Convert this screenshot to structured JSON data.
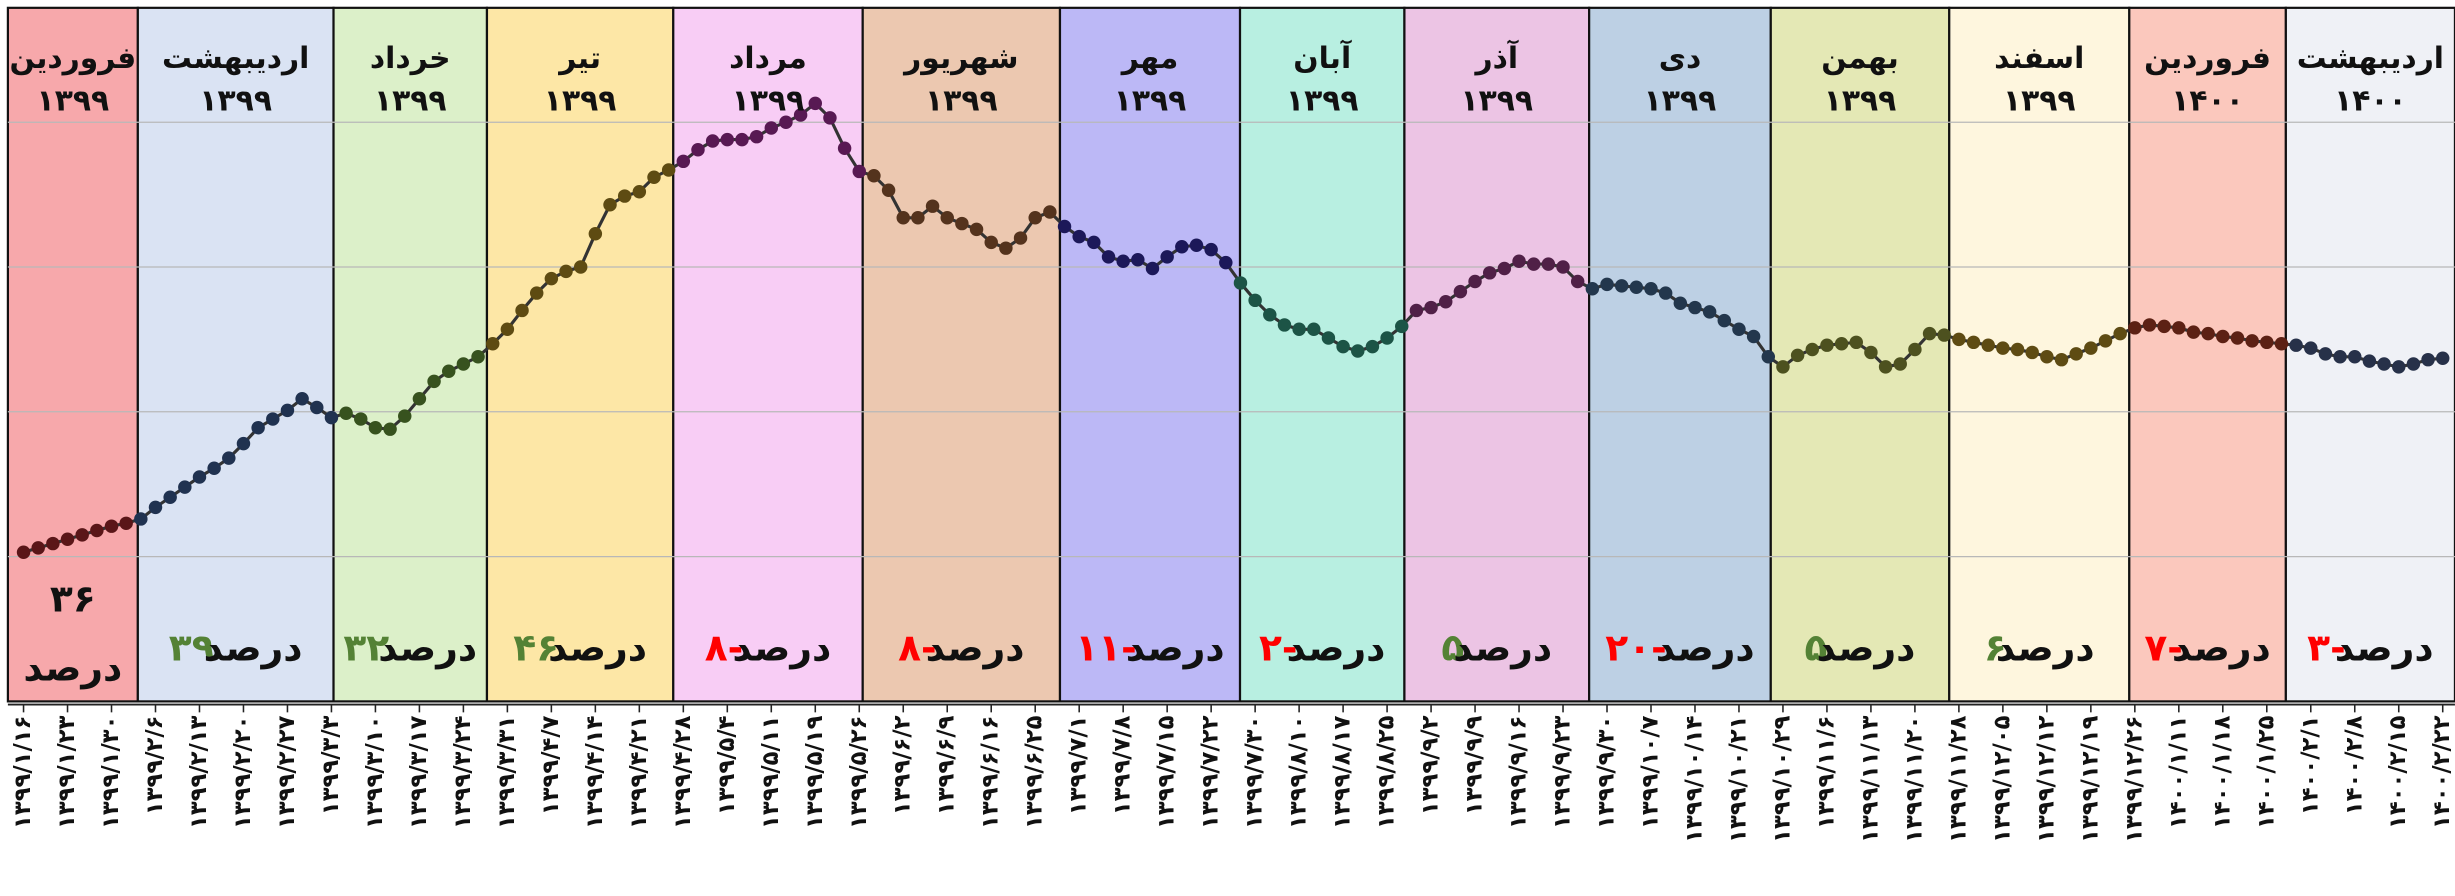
{
  "chart_data": {
    "type": "line",
    "change_unit": "درصد",
    "positive_color": "#548235",
    "negative_color": "#ff0000",
    "bands": [
      {
        "month": "فروردین",
        "year": "۱۳۹۹",
        "color": "#f7a8ab",
        "change": 36,
        "change_label": "۳۶"
      },
      {
        "month": "اردیبهشت",
        "year": "۱۳۹۹",
        "color": "#dae3f3",
        "change": 39,
        "change_label": "۳۹"
      },
      {
        "month": "خرداد",
        "year": "۱۳۹۹",
        "color": "#dcf0c9",
        "change": 32,
        "change_label": "۳۲"
      },
      {
        "month": "تیر",
        "year": "۱۳۹۹",
        "color": "#fde7a6",
        "change": 46,
        "change_label": "۴۶"
      },
      {
        "month": "مرداد",
        "year": "۱۳۹۹",
        "color": "#f8cdf5",
        "change": -8,
        "change_label": "-۸"
      },
      {
        "month": "شهریور",
        "year": "۱۳۹۹",
        "color": "#ecc8b0",
        "change": -8,
        "change_label": "-۸"
      },
      {
        "month": "مهر",
        "year": "۱۳۹۹",
        "color": "#bcb8f6",
        "change": -11,
        "change_label": "-۱۱"
      },
      {
        "month": "آبان",
        "year": "۱۳۹۹",
        "color": "#b8efe1",
        "change": -2,
        "change_label": "-۲"
      },
      {
        "month": "آذر",
        "year": "۱۳۹۹",
        "color": "#ecc4e4",
        "change": 5,
        "change_label": "۵"
      },
      {
        "month": "دی",
        "year": "۱۳۹۹",
        "color": "#bdd0e4",
        "change": -20,
        "change_label": "-۲۰"
      },
      {
        "month": "بهمن",
        "year": "۱۳۹۹",
        "color": "#e4e8b5",
        "change": 5,
        "change_label": "۵"
      },
      {
        "month": "اسفند",
        "year": "۱۳۹۹",
        "color": "#fef6de",
        "change": 6,
        "change_label": "۶"
      },
      {
        "month": "فروردین",
        "year": "۱۴۰۰",
        "color": "#fbc8bd",
        "change": -7,
        "change_label": "-۷"
      },
      {
        "month": "اردیبهشت",
        "year": "۱۴۰۰",
        "color": "#eff1f6",
        "change": -3,
        "change_label": "-۳"
      }
    ],
    "categories": [
      "۱۳۹۹/۱/۱۶",
      null,
      null,
      "۱۳۹۹/۱/۲۳",
      null,
      null,
      "۱۳۹۹/۱/۳۰",
      null,
      null,
      "۱۳۹۹/۲/۶",
      null,
      null,
      "۱۳۹۹/۲/۱۳",
      null,
      null,
      "۱۳۹۹/۲/۲۰",
      null,
      null,
      "۱۳۹۹/۲/۲۷",
      null,
      null,
      "۱۳۹۹/۳/۳",
      null,
      null,
      "۱۳۹۹/۳/۱۰",
      null,
      null,
      "۱۳۹۹/۳/۱۷",
      null,
      null,
      "۱۳۹۹/۳/۲۴",
      null,
      null,
      "۱۳۹۹/۳/۳۱",
      null,
      null,
      "۱۳۹۹/۴/۷",
      null,
      null,
      "۱۳۹۹/۴/۱۴",
      null,
      null,
      "۱۳۹۹/۴/۲۱",
      null,
      null,
      "۱۳۹۹/۴/۲۸",
      null,
      null,
      "۱۳۹۹/۵/۴",
      null,
      null,
      "۱۳۹۹/۵/۱۱",
      null,
      null,
      "۱۳۹۹/۵/۱۹",
      null,
      null,
      "۱۳۹۹/۵/۲۶",
      null,
      null,
      "۱۳۹۹/۶/۲",
      null,
      null,
      "۱۳۹۹/۶/۹",
      null,
      null,
      "۱۳۹۹/۶/۱۶",
      null,
      null,
      "۱۳۹۹/۶/۲۵",
      null,
      null,
      "۱۳۹۹/۷/۱",
      null,
      null,
      "۱۳۹۹/۷/۸",
      null,
      null,
      "۱۳۹۹/۷/۱۵",
      null,
      null,
      "۱۳۹۹/۷/۲۲",
      null,
      null,
      "۱۳۹۹/۷/۳۰",
      null,
      null,
      "۱۳۹۹/۸/۱۰",
      null,
      null,
      "۱۳۹۹/۸/۱۷",
      null,
      null,
      "۱۳۹۹/۸/۲۵",
      null,
      null,
      "۱۳۹۹/۹/۲",
      null,
      null,
      "۱۳۹۹/۹/۹",
      null,
      null,
      "۱۳۹۹/۹/۱۶",
      null,
      null,
      "۱۳۹۹/۹/۲۳",
      null,
      null,
      "۱۳۹۹/۹/۳۰",
      null,
      null,
      "۱۳۹۹/۱۰/۷",
      null,
      null,
      "۱۳۹۹/۱۰/۱۴",
      null,
      null,
      "۱۳۹۹/۱۰/۲۱",
      null,
      null,
      "۱۳۹۹/۱۰/۲۹",
      null,
      null,
      "۱۳۹۹/۱۱/۶",
      null,
      null,
      "۱۳۹۹/۱۱/۱۳",
      null,
      null,
      "۱۳۹۹/۱۱/۲۰",
      null,
      null,
      "۱۳۹۹/۱۱/۲۸",
      null,
      null,
      "۱۳۹۹/۱۲/۰۵",
      null,
      null,
      "۱۳۹۹/۱۲/۱۲",
      null,
      null,
      "۱۳۹۹/۱۲/۱۹",
      null,
      null,
      "۱۳۹۹/۱۲/۲۶",
      null,
      null,
      "۱۴۰۰/۱/۱۱",
      null,
      null,
      "۱۴۰۰/۱/۱۸",
      null,
      null,
      "۱۴۰۰/۱/۲۵",
      null,
      null,
      "۱۴۰۰/۲/۱",
      null,
      null,
      "۱۴۰۰/۲/۸",
      null,
      null,
      "۱۴۰۰/۲/۱۵",
      null,
      null,
      "۱۴۰۰/۲/۲۲"
    ],
    "values": [
      1.03,
      1.06,
      1.09,
      1.12,
      1.15,
      1.18,
      1.21,
      1.23,
      1.26,
      1.34,
      1.41,
      1.48,
      1.55,
      1.61,
      1.68,
      1.78,
      1.89,
      1.95,
      2.01,
      2.09,
      2.03,
      1.96,
      1.99,
      1.95,
      1.89,
      1.88,
      1.97,
      2.09,
      2.21,
      2.28,
      2.33,
      2.38,
      2.47,
      2.57,
      2.7,
      2.82,
      2.92,
      2.97,
      3.0,
      3.23,
      3.43,
      3.49,
      3.52,
      3.62,
      3.67,
      3.73,
      3.81,
      3.87,
      3.88,
      3.88,
      3.9,
      3.96,
      4.0,
      4.05,
      4.13,
      4.03,
      3.82,
      3.66,
      3.63,
      3.53,
      3.34,
      3.34,
      3.42,
      3.34,
      3.3,
      3.26,
      3.17,
      3.13,
      3.2,
      3.34,
      3.38,
      3.28,
      3.21,
      3.17,
      3.07,
      3.04,
      3.05,
      2.99,
      3.07,
      3.14,
      3.15,
      3.12,
      3.03,
      2.89,
      2.77,
      2.67,
      2.6,
      2.57,
      2.57,
      2.51,
      2.45,
      2.42,
      2.45,
      2.51,
      2.59,
      2.7,
      2.72,
      2.76,
      2.83,
      2.9,
      2.96,
      2.99,
      3.04,
      3.02,
      3.02,
      3.0,
      2.9,
      2.85,
      2.88,
      2.87,
      2.86,
      2.85,
      2.82,
      2.75,
      2.72,
      2.69,
      2.63,
      2.57,
      2.52,
      2.38,
      2.31,
      2.39,
      2.43,
      2.46,
      2.47,
      2.48,
      2.41,
      2.31,
      2.33,
      2.43,
      2.54,
      2.53,
      2.5,
      2.48,
      2.46,
      2.44,
      2.43,
      2.41,
      2.38,
      2.36,
      2.4,
      2.44,
      2.49,
      2.54,
      2.58,
      2.6,
      2.59,
      2.58,
      2.55,
      2.54,
      2.52,
      2.51,
      2.49,
      2.48,
      2.47,
      2.46,
      2.44,
      2.4,
      2.38,
      2.38,
      2.35,
      2.33,
      2.31,
      2.33,
      2.36,
      2.37
    ],
    "ylim": [
      0,
      4.79
    ],
    "yticks": [
      1,
      2,
      3,
      4
    ],
    "grid": true,
    "markers": true
  }
}
